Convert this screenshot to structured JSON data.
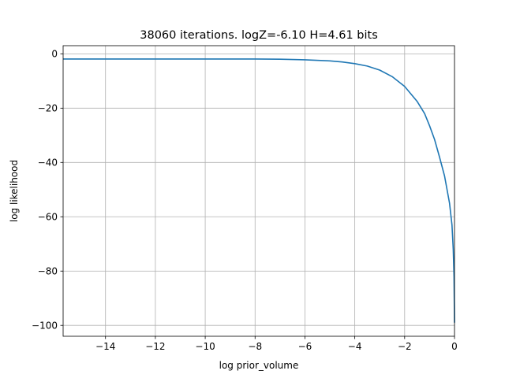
{
  "chart_data": {
    "type": "line",
    "title": "38060 iterations. logZ=-6.10 H=4.61 bits",
    "xlabel": "log prior_volume",
    "ylabel": "log likelihood",
    "xlim": [
      -15.7,
      0
    ],
    "ylim": [
      -104,
      3
    ],
    "xticks": [
      -14,
      -12,
      -10,
      -8,
      -6,
      -4,
      -2,
      0
    ],
    "xtick_labels": [
      "−14",
      "−12",
      "−10",
      "−8",
      "−6",
      "−4",
      "−2",
      "0"
    ],
    "yticks": [
      0,
      -20,
      -40,
      -60,
      -80,
      -100
    ],
    "ytick_labels": [
      "0",
      "−20",
      "−40",
      "−60",
      "−80",
      "−100"
    ],
    "grid": true,
    "series": [
      {
        "color": "#1f77b4",
        "x": [
          -15.7,
          -14,
          -12,
          -10,
          -8,
          -7,
          -6,
          -5,
          -4.5,
          -4,
          -3.5,
          -3,
          -2.5,
          -2,
          -1.5,
          -1.2,
          -1,
          -0.8,
          -0.6,
          -0.4,
          -0.2,
          -0.1,
          -0.05,
          -0.02,
          0
        ],
        "y": [
          -1.9,
          -1.9,
          -1.9,
          -1.9,
          -1.9,
          -2.0,
          -2.2,
          -2.6,
          -3.0,
          -3.6,
          -4.5,
          -6.0,
          -8.4,
          -12.0,
          -17.5,
          -22.0,
          -26.5,
          -31.5,
          -38.0,
          -45.0,
          -55.0,
          -63.0,
          -72.0,
          -82.0,
          -99.0
        ]
      }
    ]
  }
}
